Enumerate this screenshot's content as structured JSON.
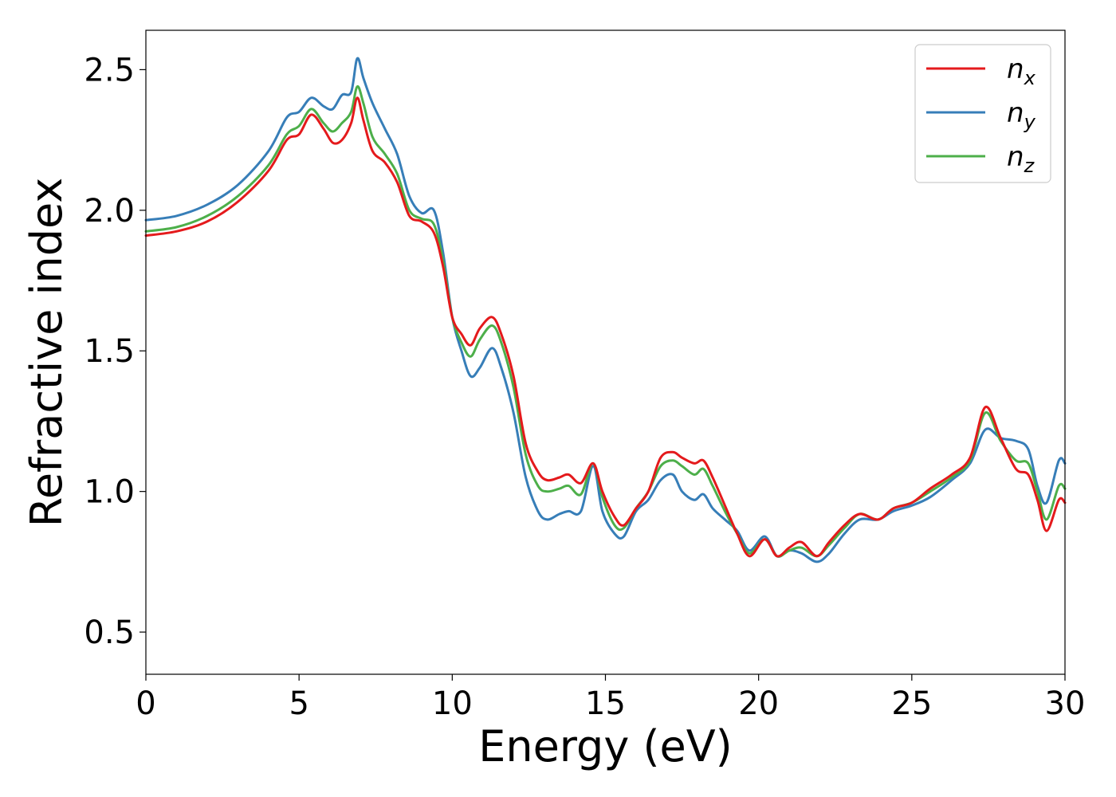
{
  "chart_data": {
    "type": "line",
    "xlabel": "Energy (eV)",
    "ylabel": "Refractive index",
    "xlim": [
      0,
      30
    ],
    "ylim": [
      0.35,
      2.64
    ],
    "xticks": [
      "0",
      "5",
      "10",
      "15",
      "20",
      "25",
      "30"
    ],
    "yticks": [
      "0.5",
      "1.0",
      "1.5",
      "2.0",
      "2.5"
    ],
    "grid": false,
    "legend": "top-right",
    "series": [
      {
        "name": "n",
        "subscript": "x",
        "color": "#e41a1c",
        "points": [
          [
            0,
            1.91
          ],
          [
            1,
            1.925
          ],
          [
            2,
            1.96
          ],
          [
            3,
            2.03
          ],
          [
            4,
            2.14
          ],
          [
            4.6,
            2.25
          ],
          [
            5.0,
            2.27
          ],
          [
            5.4,
            2.34
          ],
          [
            5.8,
            2.29
          ],
          [
            6.1,
            2.24
          ],
          [
            6.4,
            2.25
          ],
          [
            6.7,
            2.31
          ],
          [
            6.9,
            2.4
          ],
          [
            7.1,
            2.32
          ],
          [
            7.4,
            2.21
          ],
          [
            7.8,
            2.17
          ],
          [
            8.2,
            2.1
          ],
          [
            8.6,
            1.98
          ],
          [
            9.0,
            1.96
          ],
          [
            9.4,
            1.92
          ],
          [
            9.7,
            1.8
          ],
          [
            10.0,
            1.62
          ],
          [
            10.3,
            1.56
          ],
          [
            10.6,
            1.52
          ],
          [
            10.9,
            1.58
          ],
          [
            11.3,
            1.62
          ],
          [
            11.6,
            1.56
          ],
          [
            12.0,
            1.41
          ],
          [
            12.4,
            1.17
          ],
          [
            12.8,
            1.07
          ],
          [
            13.1,
            1.04
          ],
          [
            13.5,
            1.05
          ],
          [
            13.8,
            1.06
          ],
          [
            14.2,
            1.03
          ],
          [
            14.6,
            1.1
          ],
          [
            14.9,
            1.0
          ],
          [
            15.3,
            0.91
          ],
          [
            15.6,
            0.88
          ],
          [
            16.0,
            0.94
          ],
          [
            16.4,
            1.0
          ],
          [
            16.8,
            1.12
          ],
          [
            17.2,
            1.14
          ],
          [
            17.5,
            1.12
          ],
          [
            17.9,
            1.1
          ],
          [
            18.2,
            1.11
          ],
          [
            18.5,
            1.05
          ],
          [
            18.9,
            0.95
          ],
          [
            19.3,
            0.85
          ],
          [
            19.7,
            0.77
          ],
          [
            20.2,
            0.83
          ],
          [
            20.6,
            0.77
          ],
          [
            21.0,
            0.8
          ],
          [
            21.4,
            0.82
          ],
          [
            21.9,
            0.77
          ],
          [
            22.3,
            0.82
          ],
          [
            22.8,
            0.88
          ],
          [
            23.3,
            0.92
          ],
          [
            23.9,
            0.9
          ],
          [
            24.4,
            0.94
          ],
          [
            25.0,
            0.96
          ],
          [
            25.6,
            1.01
          ],
          [
            26.3,
            1.06
          ],
          [
            26.9,
            1.12
          ],
          [
            27.4,
            1.3
          ],
          [
            27.9,
            1.19
          ],
          [
            28.4,
            1.08
          ],
          [
            28.8,
            1.06
          ],
          [
            29.1,
            0.97
          ],
          [
            29.4,
            0.86
          ],
          [
            29.8,
            0.97
          ],
          [
            30,
            0.96
          ]
        ]
      },
      {
        "name": "n",
        "subscript": "y",
        "color": "#377eb8",
        "points": [
          [
            0,
            1.965
          ],
          [
            1,
            1.98
          ],
          [
            2,
            2.02
          ],
          [
            3,
            2.09
          ],
          [
            4,
            2.21
          ],
          [
            4.6,
            2.33
          ],
          [
            5.0,
            2.35
          ],
          [
            5.4,
            2.4
          ],
          [
            5.8,
            2.37
          ],
          [
            6.1,
            2.36
          ],
          [
            6.4,
            2.41
          ],
          [
            6.7,
            2.42
          ],
          [
            6.9,
            2.54
          ],
          [
            7.1,
            2.47
          ],
          [
            7.4,
            2.38
          ],
          [
            7.8,
            2.29
          ],
          [
            8.2,
            2.2
          ],
          [
            8.6,
            2.05
          ],
          [
            9.0,
            1.99
          ],
          [
            9.4,
            2.0
          ],
          [
            9.7,
            1.85
          ],
          [
            10.0,
            1.62
          ],
          [
            10.3,
            1.5
          ],
          [
            10.6,
            1.41
          ],
          [
            10.9,
            1.44
          ],
          [
            11.3,
            1.51
          ],
          [
            11.6,
            1.44
          ],
          [
            12.0,
            1.28
          ],
          [
            12.4,
            1.05
          ],
          [
            12.8,
            0.93
          ],
          [
            13.1,
            0.9
          ],
          [
            13.5,
            0.92
          ],
          [
            13.8,
            0.93
          ],
          [
            14.2,
            0.93
          ],
          [
            14.6,
            1.09
          ],
          [
            14.9,
            0.93
          ],
          [
            15.3,
            0.85
          ],
          [
            15.6,
            0.84
          ],
          [
            16.0,
            0.93
          ],
          [
            16.4,
            0.97
          ],
          [
            16.8,
            1.04
          ],
          [
            17.2,
            1.06
          ],
          [
            17.5,
            1.0
          ],
          [
            17.9,
            0.97
          ],
          [
            18.2,
            0.99
          ],
          [
            18.5,
            0.94
          ],
          [
            18.9,
            0.9
          ],
          [
            19.3,
            0.86
          ],
          [
            19.7,
            0.79
          ],
          [
            20.2,
            0.84
          ],
          [
            20.6,
            0.77
          ],
          [
            21.0,
            0.79
          ],
          [
            21.4,
            0.78
          ],
          [
            21.9,
            0.75
          ],
          [
            22.3,
            0.78
          ],
          [
            22.8,
            0.85
          ],
          [
            23.3,
            0.9
          ],
          [
            23.9,
            0.9
          ],
          [
            24.4,
            0.93
          ],
          [
            25.0,
            0.95
          ],
          [
            25.6,
            0.98
          ],
          [
            26.3,
            1.04
          ],
          [
            26.9,
            1.1
          ],
          [
            27.4,
            1.22
          ],
          [
            27.9,
            1.19
          ],
          [
            28.4,
            1.18
          ],
          [
            28.8,
            1.15
          ],
          [
            29.1,
            1.02
          ],
          [
            29.4,
            0.96
          ],
          [
            29.8,
            1.11
          ],
          [
            30,
            1.1
          ]
        ]
      },
      {
        "name": "n",
        "subscript": "z",
        "color": "#4daf4a",
        "points": [
          [
            0,
            1.925
          ],
          [
            1,
            1.94
          ],
          [
            2,
            1.98
          ],
          [
            3,
            2.05
          ],
          [
            4,
            2.16
          ],
          [
            4.6,
            2.27
          ],
          [
            5.0,
            2.3
          ],
          [
            5.4,
            2.36
          ],
          [
            5.8,
            2.31
          ],
          [
            6.1,
            2.28
          ],
          [
            6.4,
            2.31
          ],
          [
            6.7,
            2.35
          ],
          [
            6.9,
            2.44
          ],
          [
            7.1,
            2.38
          ],
          [
            7.4,
            2.26
          ],
          [
            7.8,
            2.2
          ],
          [
            8.2,
            2.13
          ],
          [
            8.6,
            2.0
          ],
          [
            9.0,
            1.97
          ],
          [
            9.4,
            1.95
          ],
          [
            9.7,
            1.82
          ],
          [
            10.0,
            1.62
          ],
          [
            10.3,
            1.53
          ],
          [
            10.6,
            1.48
          ],
          [
            10.9,
            1.54
          ],
          [
            11.3,
            1.59
          ],
          [
            11.6,
            1.53
          ],
          [
            12.0,
            1.37
          ],
          [
            12.4,
            1.13
          ],
          [
            12.8,
            1.02
          ],
          [
            13.1,
            1.0
          ],
          [
            13.5,
            1.01
          ],
          [
            13.8,
            1.02
          ],
          [
            14.2,
            0.99
          ],
          [
            14.6,
            1.1
          ],
          [
            14.9,
            0.98
          ],
          [
            15.3,
            0.88
          ],
          [
            15.6,
            0.87
          ],
          [
            16.0,
            0.94
          ],
          [
            16.4,
            1.0
          ],
          [
            16.8,
            1.09
          ],
          [
            17.2,
            1.11
          ],
          [
            17.5,
            1.09
          ],
          [
            17.9,
            1.06
          ],
          [
            18.2,
            1.08
          ],
          [
            18.5,
            1.02
          ],
          [
            18.9,
            0.93
          ],
          [
            19.3,
            0.85
          ],
          [
            19.7,
            0.78
          ],
          [
            20.2,
            0.83
          ],
          [
            20.6,
            0.77
          ],
          [
            21.0,
            0.79
          ],
          [
            21.4,
            0.8
          ],
          [
            21.9,
            0.77
          ],
          [
            22.3,
            0.81
          ],
          [
            22.8,
            0.87
          ],
          [
            23.3,
            0.92
          ],
          [
            23.9,
            0.9
          ],
          [
            24.4,
            0.94
          ],
          [
            25.0,
            0.96
          ],
          [
            25.6,
            1.0
          ],
          [
            26.3,
            1.05
          ],
          [
            26.9,
            1.11
          ],
          [
            27.4,
            1.28
          ],
          [
            27.9,
            1.18
          ],
          [
            28.4,
            1.11
          ],
          [
            28.8,
            1.1
          ],
          [
            29.1,
            1.0
          ],
          [
            29.4,
            0.9
          ],
          [
            29.8,
            1.02
          ],
          [
            30,
            1.01
          ]
        ]
      }
    ]
  }
}
